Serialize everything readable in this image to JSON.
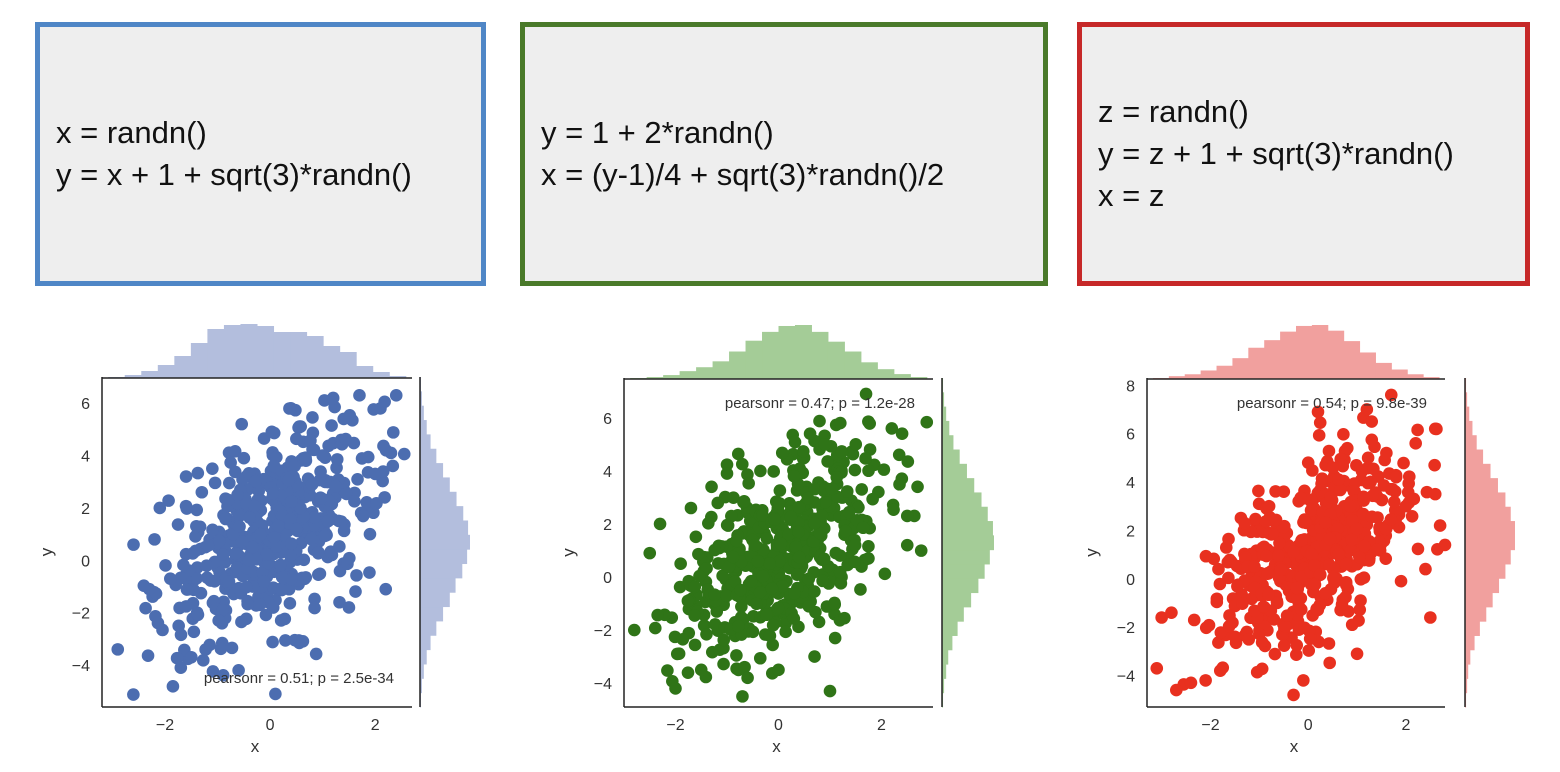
{
  "models": [
    {
      "lines": [
        "x = randn()",
        "y = x + 1 + sqrt(3)*randn()"
      ],
      "border_color": "#4f86c6"
    },
    {
      "lines": [
        "y = 1 + 2*randn()",
        "x = (y-1)/4 + sqrt(3)*randn()/2"
      ],
      "border_color": "#4a7a2a"
    },
    {
      "lines": [
        "z = randn()",
        "y = z + 1 + sqrt(3)*randn()",
        "x = z"
      ],
      "border_color": "#c62828"
    }
  ],
  "chart_data": [
    {
      "type": "scatter",
      "xlabel": "x",
      "ylabel": "y",
      "xlim": [
        -3.2,
        2.7
      ],
      "ylim": [
        -5.6,
        7.0
      ],
      "xticks": [
        -2,
        0,
        2
      ],
      "yticks": [
        -4,
        -2,
        0,
        2,
        4,
        6
      ],
      "annotation": "pearsonr = 0.51; p = 2.5e-34",
      "annotation_position": "bottom-right",
      "color": "#4c6db0",
      "hist_color": "#b3bedd",
      "n_points": 500,
      "x_hist_counts": [
        1,
        3,
        7,
        13,
        22,
        35,
        49,
        53,
        54,
        52,
        46,
        46,
        42,
        32,
        26,
        12,
        6,
        2
      ],
      "y_hist_counts": [
        1,
        2,
        4,
        7,
        11,
        17,
        24,
        31,
        37,
        44,
        49,
        52,
        50,
        45,
        38,
        31,
        24,
        17,
        11,
        7,
        4,
        2,
        1
      ],
      "series": [
        {
          "values": [
            [
              -2.9,
              -3.4
            ],
            [
              -2.6,
              0.6
            ],
            [
              -2.3,
              -1.1
            ],
            [
              -2.2,
              0.8
            ],
            [
              -2.1,
              2.0
            ],
            [
              -1.9,
              -0.7
            ],
            [
              -1.7,
              -4.1
            ],
            [
              -1.6,
              3.2
            ],
            [
              -1.5,
              -3.7
            ],
            [
              -1.3,
              2.6
            ],
            [
              -1.1,
              3.5
            ],
            [
              -0.6,
              -4.2
            ],
            [
              -0.5,
              3.9
            ],
            [
              -0.4,
              0.0
            ],
            [
              -0.2,
              -1.7
            ],
            [
              0.1,
              -5.1
            ],
            [
              0.5,
              1.2
            ],
            [
              0.8,
              2.9
            ],
            [
              1.0,
              4.0
            ],
            [
              1.2,
              6.2
            ],
            [
              1.4,
              5.4
            ],
            [
              1.5,
              -1.8
            ],
            [
              1.7,
              6.3
            ],
            [
              1.9,
              1.0
            ],
            [
              2.0,
              3.3
            ],
            [
              2.1,
              5.8
            ],
            [
              2.2,
              -1.1
            ],
            [
              2.3,
              4.1
            ],
            [
              2.4,
              6.3
            ]
          ]
        }
      ]
    },
    {
      "type": "scatter",
      "xlabel": "x",
      "ylabel": "y",
      "xlim": [
        -3.0,
        3.0
      ],
      "ylim": [
        -4.9,
        7.5
      ],
      "xticks": [
        -2,
        0,
        2
      ],
      "yticks": [
        -4,
        -2,
        0,
        2,
        4,
        6
      ],
      "annotation": "pearsonr = 0.47; p = 1.2e-28",
      "annotation_position": "top-right",
      "color": "#2f7417",
      "hist_color": "#a4cc97",
      "n_points": 500,
      "x_hist_counts": [
        1,
        2,
        4,
        8,
        12,
        18,
        28,
        39,
        48,
        54,
        55,
        48,
        38,
        28,
        17,
        10,
        5,
        2
      ],
      "y_hist_counts": [
        1,
        2,
        4,
        6,
        10,
        15,
        21,
        28,
        35,
        41,
        46,
        50,
        49,
        44,
        38,
        31,
        24,
        17,
        11,
        7,
        4,
        2,
        1
      ],
      "series": [
        {
          "values": [
            [
              -2.8,
              -2.0
            ],
            [
              -2.5,
              0.9
            ],
            [
              -2.3,
              2.0
            ],
            [
              -2.0,
              -4.2
            ],
            [
              -1.9,
              0.5
            ],
            [
              -1.7,
              2.6
            ],
            [
              -1.5,
              -3.5
            ],
            [
              -1.3,
              3.4
            ],
            [
              -1.0,
              3.9
            ],
            [
              -0.7,
              -4.5
            ],
            [
              -0.6,
              -3.8
            ],
            [
              0.0,
              -3.5
            ],
            [
              0.3,
              3.8
            ],
            [
              0.7,
              -3.0
            ],
            [
              0.9,
              5.0
            ],
            [
              1.0,
              -4.3
            ],
            [
              1.1,
              -2.3
            ],
            [
              1.2,
              5.8
            ],
            [
              1.5,
              5.0
            ],
            [
              1.7,
              6.9
            ],
            [
              2.2,
              5.6
            ],
            [
              2.4,
              5.4
            ],
            [
              2.5,
              2.3
            ],
            [
              2.5,
              1.2
            ],
            [
              2.7,
              3.4
            ]
          ]
        }
      ]
    },
    {
      "type": "scatter",
      "xlabel": "x",
      "ylabel": "y",
      "xlim": [
        -3.3,
        2.8
      ],
      "ylim": [
        -5.3,
        8.3
      ],
      "xticks": [
        -2,
        0,
        2
      ],
      "yticks": [
        -4,
        -2,
        0,
        2,
        4,
        6,
        8
      ],
      "annotation": "pearsonr = 0.54; p = 9.8e-39",
      "annotation_position": "top-right",
      "color": "#e8301f",
      "hist_color": "#f1a09e",
      "n_points": 500,
      "x_hist_counts": [
        1,
        3,
        5,
        9,
        14,
        22,
        33,
        41,
        50,
        56,
        57,
        51,
        40,
        28,
        17,
        10,
        5,
        2
      ],
      "y_hist_counts": [
        1,
        2,
        3,
        5,
        9,
        14,
        20,
        26,
        32,
        38,
        43,
        47,
        47,
        43,
        38,
        31,
        24,
        17,
        11,
        7,
        4,
        2,
        1
      ],
      "series": [
        {
          "values": [
            [
              -3.1,
              -3.7
            ],
            [
              -3.0,
              -1.6
            ],
            [
              -2.8,
              -1.4
            ],
            [
              -2.7,
              -4.6
            ],
            [
              -2.4,
              -4.3
            ],
            [
              -2.1,
              -4.2
            ],
            [
              -1.8,
              -3.8
            ],
            [
              -1.5,
              -2.4
            ],
            [
              -1.3,
              2.3
            ],
            [
              -1.1,
              0.5
            ],
            [
              -0.8,
              3.0
            ],
            [
              -0.5,
              3.6
            ],
            [
              -0.3,
              -4.8
            ],
            [
              -0.1,
              -4.2
            ],
            [
              0.0,
              4.8
            ],
            [
              0.2,
              6.9
            ],
            [
              0.5,
              4.6
            ],
            [
              0.8,
              5.4
            ],
            [
              0.9,
              -1.9
            ],
            [
              1.0,
              -3.1
            ],
            [
              1.2,
              7.0
            ],
            [
              1.3,
              6.5
            ],
            [
              1.6,
              5.2
            ],
            [
              1.7,
              7.6
            ],
            [
              1.8,
              4.2
            ],
            [
              1.9,
              -0.1
            ],
            [
              2.0,
              3.0
            ],
            [
              2.2,
              5.6
            ],
            [
              2.4,
              0.4
            ],
            [
              2.5,
              -1.6
            ],
            [
              2.6,
              6.2
            ],
            [
              2.6,
              3.5
            ],
            [
              2.7,
              2.2
            ],
            [
              2.8,
              1.4
            ]
          ]
        }
      ]
    }
  ]
}
